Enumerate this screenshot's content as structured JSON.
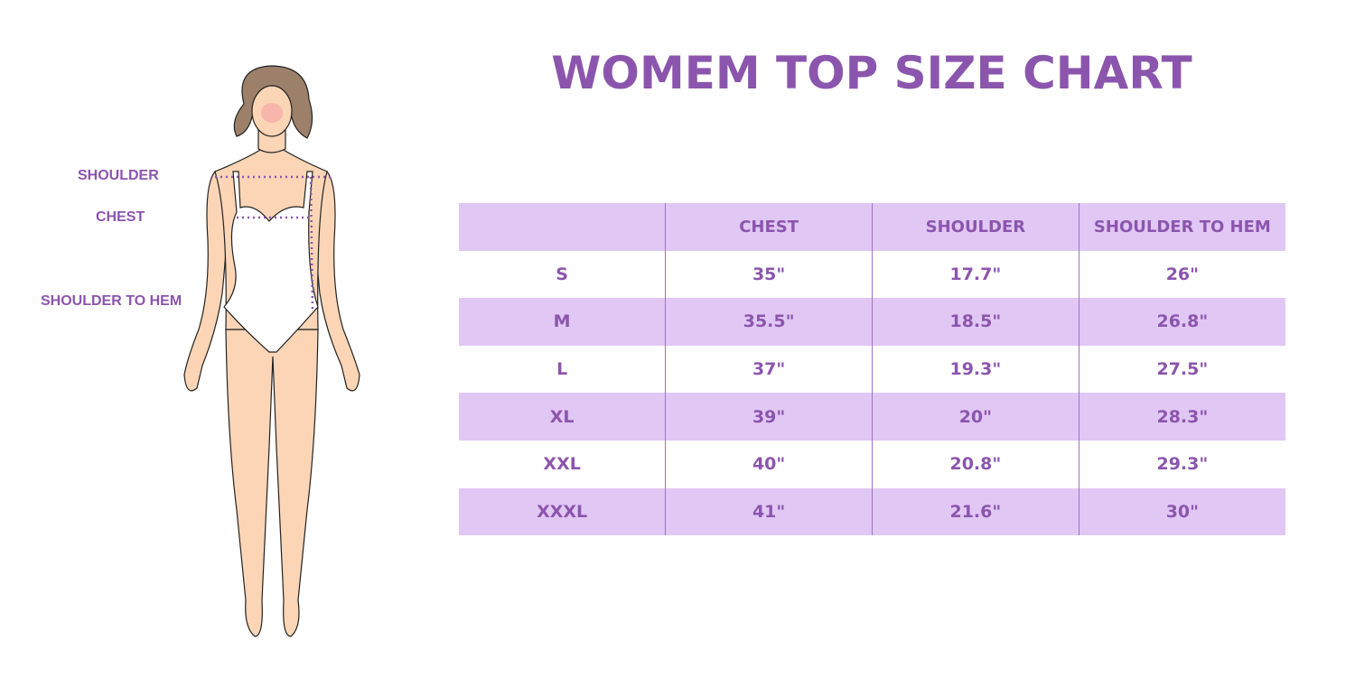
{
  "title": "WOMEM TOP SIZE CHART",
  "figure_labels": {
    "shoulder": "SHOULDER",
    "chest": "CHEST",
    "shoulder_to_hem": "SHOULDER TO HEM"
  },
  "colors": {
    "accent": "#8b55ad",
    "row_shade": "#e1c7f4",
    "skin": "#fbd5b5",
    "hair": "#9c8069"
  },
  "chart_data": {
    "type": "table",
    "columns": [
      "",
      "CHEST",
      "SHOULDER",
      "SHOULDER TO HEM"
    ],
    "rows": [
      [
        "S",
        "35\"",
        "17.7\"",
        "26\""
      ],
      [
        "M",
        "35.5\"",
        "18.5\"",
        "26.8\""
      ],
      [
        "L",
        "37\"",
        "19.3\"",
        "27.5\""
      ],
      [
        "XL",
        "39\"",
        "20\"",
        "28.3\""
      ],
      [
        "XXL",
        "40\"",
        "20.8\"",
        "29.3\""
      ],
      [
        "XXXL",
        "41\"",
        "21.6\"",
        "30\""
      ]
    ]
  }
}
